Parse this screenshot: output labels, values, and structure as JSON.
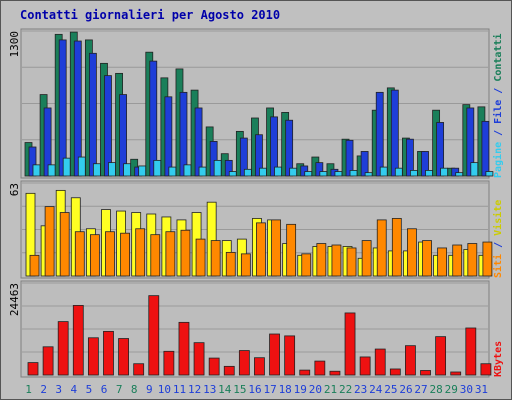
{
  "chart_data": {
    "type": "bar",
    "title": "Contatti giornalieri per Agosto 2010",
    "categories": [
      "1",
      "2",
      "3",
      "4",
      "5",
      "6",
      "7",
      "8",
      "9",
      "10",
      "11",
      "12",
      "13",
      "14",
      "15",
      "16",
      "17",
      "18",
      "19",
      "20",
      "21",
      "22",
      "23",
      "24",
      "25",
      "26",
      "27",
      "28",
      "29",
      "30",
      "31"
    ],
    "weekend_days": [
      "1",
      "7",
      "8",
      "14",
      "15",
      "21",
      "22",
      "28",
      "29"
    ],
    "panels": [
      {
        "id": "top",
        "ymax_label": "1300",
        "ymax": 1300,
        "side_label": {
          "parts": [
            "Pagine",
            " / ",
            "File",
            " / ",
            "Contatti"
          ]
        },
        "series": [
          {
            "name": "Contatti",
            "color": "#1a7f5a",
            "values": [
              300,
              730,
              1270,
              1290,
              1220,
              1010,
              920,
              150,
              1110,
              880,
              960,
              770,
              440,
              200,
              400,
              520,
              610,
              570,
              110,
              170,
              110,
              330,
              180,
              590,
              790,
              340,
              220,
              590,
              70,
              640,
              620
            ]
          },
          {
            "name": "File",
            "color": "#1e3ed8",
            "values": [
              260,
              610,
              1220,
              1210,
              1100,
              900,
              730,
              80,
              1030,
              710,
              750,
              610,
              310,
              140,
              340,
              370,
              530,
              500,
              90,
              120,
              60,
              320,
              220,
              750,
              770,
              330,
              220,
              480,
              70,
              610,
              490
            ]
          },
          {
            "name": "Pagine",
            "color": "#33ccee",
            "values": [
              100,
              100,
              160,
              170,
              110,
              120,
              110,
              90,
              140,
              80,
              100,
              80,
              140,
              40,
              60,
              70,
              80,
              70,
              40,
              40,
              40,
              50,
              30,
              80,
              70,
              50,
              50,
              70,
              30,
              120,
              40
            ]
          }
        ]
      },
      {
        "id": "middle",
        "ymax_label": "63",
        "ymax": 63,
        "side_label": {
          "parts": [
            "Siti",
            " / ",
            "Visite"
          ]
        },
        "series": [
          {
            "name": "Visite",
            "color": "#ffff22",
            "values": [
              56,
              34,
              58,
              53,
              32,
              45,
              44,
              43,
              42,
              40,
              38,
              43,
              50,
              24,
              25,
              39,
              38,
              22,
              14,
              20,
              20,
              20,
              12,
              19,
              17,
              17,
              23,
              14,
              14,
              18,
              14
            ]
          },
          {
            "name": "Siti",
            "color": "#ff8800",
            "values": [
              14,
              47,
              43,
              30,
              28,
              30,
              29,
              32,
              28,
              30,
              31,
              25,
              24,
              16,
              15,
              36,
              38,
              35,
              15,
              22,
              21,
              19,
              24,
              38,
              39,
              32,
              24,
              19,
              21,
              22,
              23
            ]
          }
        ]
      },
      {
        "id": "bottom",
        "ymax_label": "24463",
        "ymax": 24463,
        "side_label": {
          "parts": [
            "KBytes"
          ]
        },
        "series": [
          {
            "name": "KBytes",
            "color": "#ee1111",
            "values": [
              3300,
              7500,
              14200,
              18500,
              9900,
              11600,
              9700,
              3000,
              21100,
              6300,
              14000,
              8600,
              4500,
              2300,
              6500,
              4600,
              10900,
              10400,
              1300,
              3700,
              1000,
              16500,
              4800,
              6900,
              1600,
              7800,
              1200,
              10200,
              800,
              12500,
              3000
            ]
          }
        ]
      }
    ]
  }
}
